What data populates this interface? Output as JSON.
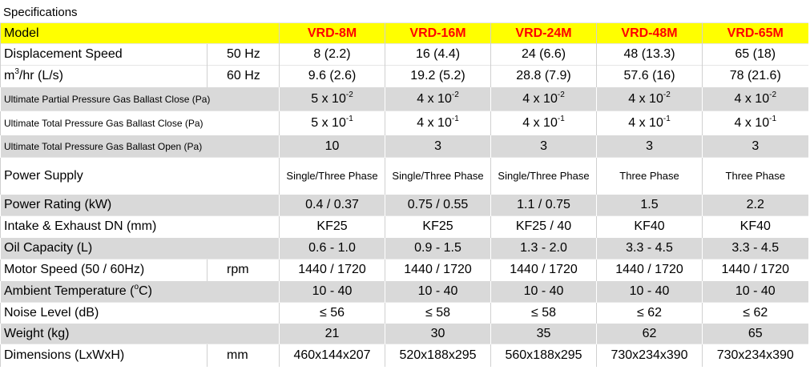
{
  "title": "Specifications",
  "header": {
    "label": "Model",
    "models": [
      "VRD-8M",
      "VRD-16M",
      "VRD-24M",
      "VRD-48M",
      "VRD-65M"
    ]
  },
  "rows": [
    {
      "label": "Displacement Speed",
      "unit": "50 Hz",
      "cells": [
        "8 (2.2)",
        "16 (4.4)",
        "24 (6.6)",
        "48 (13.3)",
        "65 (18)"
      ]
    },
    {
      "label": {
        "text": "m",
        "sup": "3",
        "after": "/hr (L/s)"
      },
      "unit": "60 Hz",
      "cells": [
        "9.6 (2.6)",
        "19.2 (5.2)",
        "28.8 (7.9)",
        "57.6 (16)",
        "78 (21.6)"
      ]
    },
    {
      "label": "Ultimate Partial Pressure Gas Ballast Close (Pa)",
      "cells": [
        {
          "text": "5 x 10",
          "sup": "-2"
        },
        {
          "text": "4 x 10",
          "sup": "-2"
        },
        {
          "text": "4 x 10",
          "sup": "-2"
        },
        {
          "text": "4 x 10",
          "sup": "-2"
        },
        {
          "text": "4 x 10",
          "sup": "-2"
        }
      ]
    },
    {
      "label": "Ultimate Total Pressure Gas Ballast Close (Pa)",
      "cells": [
        {
          "text": "5 x 10",
          "sup": "-1"
        },
        {
          "text": "4 x 10",
          "sup": "-1"
        },
        {
          "text": "4 x 10",
          "sup": "-1"
        },
        {
          "text": "4 x 10",
          "sup": "-1"
        },
        {
          "text": "4 x 10",
          "sup": "-1"
        }
      ]
    },
    {
      "label": "Ultimate Total Pressure Gas Ballast Open (Pa)",
      "cells": [
        "10",
        "3",
        "3",
        "3",
        "3"
      ]
    },
    {
      "label": "Power Supply",
      "cells": [
        "Single/Three Phase",
        "Single/Three Phase",
        "Single/Three Phase",
        "Three Phase",
        "Three Phase"
      ]
    },
    {
      "label": "Power Rating  (kW)",
      "cells": [
        "0.4 / 0.37",
        "0.75 / 0.55",
        "1.1 / 0.75",
        "1.5",
        "2.2"
      ]
    },
    {
      "label": "Intake & Exhaust DN (mm)",
      "cells": [
        "KF25",
        "KF25",
        "KF25 / 40",
        "KF40",
        "KF40"
      ]
    },
    {
      "label": "Oil Capacity (L)",
      "cells": [
        "0.6 - 1.0",
        "0.9 - 1.5",
        "1.3 - 2.0",
        "3.3 - 4.5",
        "3.3 - 4.5"
      ]
    },
    {
      "label": "Motor Speed (50 / 60Hz)",
      "unit": "rpm",
      "cells": [
        "1440 / 1720",
        "1440 / 1720",
        "1440 / 1720",
        "1440 / 1720",
        "1440 / 1720"
      ]
    },
    {
      "label": {
        "text": "Ambient Temperature (",
        "sup": "o",
        "after": "C)"
      },
      "cells": [
        "10 - 40",
        "10 - 40",
        "10 - 40",
        "10 - 40",
        "10 - 40"
      ]
    },
    {
      "label": "Noise Level (dB)",
      "cells": [
        "≤ 56",
        "≤ 58",
        "≤ 58",
        "≤ 62",
        "≤ 62"
      ]
    },
    {
      "label": "Weight (kg)",
      "cells": [
        "21",
        "30",
        "35",
        "62",
        "65"
      ]
    },
    {
      "label": "Dimensions (LxWxH)",
      "unit": "mm",
      "cells": [
        "460x144x207",
        "520x188x295",
        "560x188x295",
        "730x234x390",
        "730x234x390"
      ]
    }
  ]
}
